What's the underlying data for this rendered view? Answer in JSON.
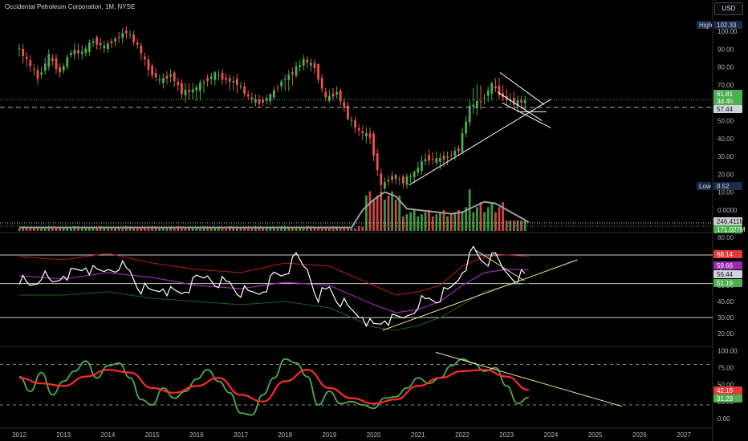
{
  "header": {
    "title": "Occidental Petroleum Corporation, 1M, NYSE",
    "currency": "USD"
  },
  "colors": {
    "up": "#26a69a",
    "up_bar": "#4caf50",
    "down": "#ef5350",
    "hline_green": "#4caf50",
    "trend": "#ffffff",
    "rsi": "#ffffff",
    "rsi_ma": "#9c27b0",
    "band_upper": "#b71c1c",
    "band_lower": "#1b5e20",
    "stoch_k": "#4caf50",
    "stoch_d": "#ff2a2a"
  },
  "chart_data": [
    {
      "type": "candlestick",
      "x_ticks": [
        "2012",
        "2013",
        "2014",
        "2015",
        "2016",
        "2017",
        "2018",
        "2019",
        "2020",
        "2021",
        "2022",
        "2023",
        "2024",
        "2025",
        "2026",
        "2027"
      ],
      "y_ticks": [
        "100.00",
        "90.00",
        "80.00",
        "70.00",
        "60.00",
        "50.00",
        "40.00",
        "30.00",
        "20.00",
        "10.00",
        "0.0000"
      ],
      "ylim": [
        0,
        105
      ],
      "labels": {
        "high_tag": "High",
        "high_value": "102.33",
        "low_tag": "Low",
        "low_value": "8.52",
        "price": "61.81",
        "countdown": "3d 4h",
        "dashed_level": "57.44"
      },
      "ohlc_quarterly": [
        [
          2012.0,
          92,
          95,
          78,
          84
        ],
        [
          2012.25,
          84,
          87,
          70,
          74
        ],
        [
          2012.5,
          74,
          90,
          72,
          86
        ],
        [
          2012.75,
          86,
          88,
          74,
          77
        ],
        [
          2013.0,
          77,
          90,
          76,
          89
        ],
        [
          2013.25,
          89,
          94,
          84,
          88
        ],
        [
          2013.5,
          88,
          96,
          86,
          95
        ],
        [
          2013.75,
          95,
          98,
          88,
          91
        ],
        [
          2014.0,
          91,
          97,
          88,
          96
        ],
        [
          2014.25,
          96,
          103,
          92,
          100
        ],
        [
          2014.5,
          100,
          102,
          90,
          92
        ],
        [
          2014.75,
          92,
          94,
          74,
          79
        ],
        [
          2015.0,
          79,
          82,
          70,
          72
        ],
        [
          2015.25,
          72,
          79,
          68,
          76
        ],
        [
          2015.5,
          76,
          78,
          62,
          66
        ],
        [
          2015.75,
          66,
          72,
          60,
          67
        ],
        [
          2016.0,
          67,
          73,
          58,
          72
        ],
        [
          2016.25,
          72,
          78,
          68,
          76
        ],
        [
          2016.5,
          76,
          79,
          70,
          73
        ],
        [
          2016.75,
          73,
          76,
          64,
          71
        ],
        [
          2017.0,
          71,
          73,
          62,
          63
        ],
        [
          2017.25,
          63,
          66,
          58,
          60
        ],
        [
          2017.5,
          60,
          65,
          58,
          64
        ],
        [
          2017.75,
          64,
          73,
          62,
          72
        ],
        [
          2018.0,
          72,
          80,
          62,
          77
        ],
        [
          2018.25,
          77,
          87,
          74,
          84
        ],
        [
          2018.5,
          84,
          86,
          76,
          80
        ],
        [
          2018.75,
          80,
          82,
          60,
          62
        ],
        [
          2019.0,
          62,
          70,
          60,
          66
        ],
        [
          2019.25,
          66,
          68,
          50,
          52
        ],
        [
          2019.5,
          52,
          54,
          40,
          44
        ],
        [
          2019.75,
          44,
          48,
          36,
          41
        ],
        [
          2020.0,
          41,
          44,
          9,
          13
        ],
        [
          2020.25,
          13,
          22,
          11,
          19
        ],
        [
          2020.5,
          19,
          20,
          12,
          16
        ],
        [
          2020.75,
          16,
          22,
          12,
          21
        ],
        [
          2021.0,
          21,
          33,
          19,
          29
        ],
        [
          2021.25,
          29,
          34,
          25,
          28
        ],
        [
          2021.5,
          28,
          33,
          22,
          30
        ],
        [
          2021.75,
          30,
          36,
          27,
          34
        ],
        [
          2022.0,
          34,
          62,
          32,
          58
        ],
        [
          2022.25,
          58,
          77,
          52,
          61
        ],
        [
          2022.5,
          61,
          72,
          56,
          70
        ],
        [
          2022.75,
          70,
          77,
          61,
          63
        ],
        [
          2023.0,
          63,
          68,
          57,
          60
        ],
        [
          2023.25,
          60,
          64,
          55,
          61
        ]
      ],
      "volume": {
        "labels": [
          "246.411M",
          "171.027M"
        ]
      }
    },
    {
      "type": "line",
      "name": "RSI",
      "y_ticks": [
        "80.00",
        "70.00",
        "60.00",
        "50.00",
        "40.00",
        "30.00",
        "20.00"
      ],
      "ylim": [
        15,
        82
      ],
      "hlines": [
        69,
        51.19,
        30
      ],
      "labels": {
        "upper": "68.14",
        "ma": "59.66",
        "rsi": "56.44",
        "lower": "51.19"
      },
      "rsi_quarterly": [
        [
          2012.0,
          55
        ],
        [
          2012.25,
          49
        ],
        [
          2012.5,
          57
        ],
        [
          2012.75,
          50
        ],
        [
          2013.0,
          58
        ],
        [
          2013.25,
          57
        ],
        [
          2013.5,
          62
        ],
        [
          2013.75,
          56
        ],
        [
          2014.0,
          60
        ],
        [
          2014.25,
          64
        ],
        [
          2014.5,
          58
        ],
        [
          2014.75,
          48
        ],
        [
          2015.0,
          45
        ],
        [
          2015.25,
          50
        ],
        [
          2015.5,
          44
        ],
        [
          2015.75,
          47
        ],
        [
          2016.0,
          52
        ],
        [
          2016.25,
          56
        ],
        [
          2016.5,
          53
        ],
        [
          2016.75,
          51
        ],
        [
          2017.0,
          46
        ],
        [
          2017.25,
          44
        ],
        [
          2017.5,
          48
        ],
        [
          2017.75,
          55
        ],
        [
          2018.0,
          58
        ],
        [
          2018.25,
          66
        ],
        [
          2018.5,
          60
        ],
        [
          2018.75,
          44
        ],
        [
          2019.0,
          48
        ],
        [
          2019.25,
          40
        ],
        [
          2019.5,
          33
        ],
        [
          2019.75,
          32
        ],
        [
          2020.0,
          23
        ],
        [
          2020.25,
          29
        ],
        [
          2020.5,
          27
        ],
        [
          2020.75,
          31
        ],
        [
          2021.0,
          40
        ],
        [
          2021.25,
          41
        ],
        [
          2021.5,
          43
        ],
        [
          2021.75,
          47
        ],
        [
          2022.0,
          60
        ],
        [
          2022.25,
          71
        ],
        [
          2022.5,
          65
        ],
        [
          2022.75,
          66
        ],
        [
          2023.0,
          58
        ],
        [
          2023.25,
          56.4
        ]
      ],
      "ma_quarterly": [
        [
          2012.0,
          56
        ],
        [
          2013.0,
          54
        ],
        [
          2014.0,
          58
        ],
        [
          2015.0,
          55
        ],
        [
          2016.0,
          50
        ],
        [
          2017.0,
          48
        ],
        [
          2018.0,
          52
        ],
        [
          2019.0,
          50
        ],
        [
          2020.0,
          38
        ],
        [
          2020.5,
          33
        ],
        [
          2021.0,
          35
        ],
        [
          2021.5,
          40
        ],
        [
          2022.0,
          50
        ],
        [
          2022.5,
          58
        ],
        [
          2023.0,
          60
        ],
        [
          2023.5,
          59.7
        ]
      ],
      "upper_band_quarterly": [
        [
          2012.0,
          68
        ],
        [
          2013.0,
          66
        ],
        [
          2014.0,
          70
        ],
        [
          2015.0,
          64
        ],
        [
          2016.0,
          60
        ],
        [
          2017.0,
          58
        ],
        [
          2018.0,
          64
        ],
        [
          2019.0,
          62
        ],
        [
          2019.5,
          56
        ],
        [
          2020.0,
          50
        ],
        [
          2020.5,
          44
        ],
        [
          2021.0,
          46
        ],
        [
          2021.5,
          50
        ],
        [
          2022.0,
          62
        ],
        [
          2022.5,
          68
        ],
        [
          2023.0,
          69
        ],
        [
          2023.5,
          68.1
        ]
      ],
      "lower_band_quarterly": [
        [
          2012.0,
          44
        ],
        [
          2013.0,
          44
        ],
        [
          2014.0,
          46
        ],
        [
          2015.0,
          42
        ],
        [
          2016.0,
          40
        ],
        [
          2017.0,
          38
        ],
        [
          2018.0,
          40
        ],
        [
          2019.0,
          36
        ],
        [
          2019.5,
          30
        ],
        [
          2020.0,
          24
        ],
        [
          2020.5,
          22
        ],
        [
          2021.0,
          25
        ],
        [
          2021.5,
          30
        ],
        [
          2022.0,
          38
        ],
        [
          2022.5,
          46
        ],
        [
          2023.0,
          50
        ],
        [
          2023.5,
          51.2
        ]
      ]
    },
    {
      "type": "line",
      "name": "Stochastic",
      "y_ticks": [
        "100.00",
        "75.00",
        "50.00",
        "25.00",
        "0.00"
      ],
      "ylim": [
        -5,
        102
      ],
      "hlines": [
        80,
        20
      ],
      "labels": {
        "d": "42.19",
        "k": "31.29"
      },
      "k_quarterly": [
        [
          2012.0,
          62
        ],
        [
          2012.25,
          40
        ],
        [
          2012.5,
          68
        ],
        [
          2012.75,
          35
        ],
        [
          2013.0,
          55
        ],
        [
          2013.25,
          70
        ],
        [
          2013.5,
          85
        ],
        [
          2013.75,
          60
        ],
        [
          2014.0,
          78
        ],
        [
          2014.25,
          82
        ],
        [
          2014.5,
          60
        ],
        [
          2014.75,
          28
        ],
        [
          2015.0,
          20
        ],
        [
          2015.25,
          45
        ],
        [
          2015.5,
          30
        ],
        [
          2015.75,
          40
        ],
        [
          2016.0,
          58
        ],
        [
          2016.25,
          72
        ],
        [
          2016.5,
          55
        ],
        [
          2016.75,
          38
        ],
        [
          2017.0,
          8
        ],
        [
          2017.25,
          5
        ],
        [
          2017.5,
          35
        ],
        [
          2017.75,
          60
        ],
        [
          2018.0,
          88
        ],
        [
          2018.25,
          82
        ],
        [
          2018.5,
          62
        ],
        [
          2018.75,
          20
        ],
        [
          2019.0,
          40
        ],
        [
          2019.25,
          22
        ],
        [
          2019.5,
          25
        ],
        [
          2019.75,
          20
        ],
        [
          2020.0,
          15
        ],
        [
          2020.25,
          30
        ],
        [
          2020.5,
          32
        ],
        [
          2020.75,
          45
        ],
        [
          2021.0,
          60
        ],
        [
          2021.25,
          52
        ],
        [
          2021.5,
          60
        ],
        [
          2021.75,
          78
        ],
        [
          2022.0,
          88
        ],
        [
          2022.25,
          82
        ],
        [
          2022.5,
          70
        ],
        [
          2022.75,
          75
        ],
        [
          2023.0,
          48
        ],
        [
          2023.25,
          22
        ],
        [
          2023.5,
          31.3
        ]
      ],
      "d_quarterly": [
        [
          2012.0,
          60
        ],
        [
          2012.5,
          52
        ],
        [
          2013.0,
          48
        ],
        [
          2013.5,
          62
        ],
        [
          2014.0,
          72
        ],
        [
          2014.5,
          68
        ],
        [
          2015.0,
          45
        ],
        [
          2015.5,
          38
        ],
        [
          2016.0,
          48
        ],
        [
          2016.5,
          60
        ],
        [
          2017.0,
          35
        ],
        [
          2017.5,
          25
        ],
        [
          2018.0,
          55
        ],
        [
          2018.5,
          72
        ],
        [
          2019.0,
          45
        ],
        [
          2019.5,
          30
        ],
        [
          2020.0,
          22
        ],
        [
          2020.5,
          28
        ],
        [
          2021.0,
          48
        ],
        [
          2021.5,
          60
        ],
        [
          2022.0,
          70
        ],
        [
          2022.5,
          72
        ],
        [
          2023.0,
          62
        ],
        [
          2023.5,
          42.2
        ]
      ]
    }
  ]
}
